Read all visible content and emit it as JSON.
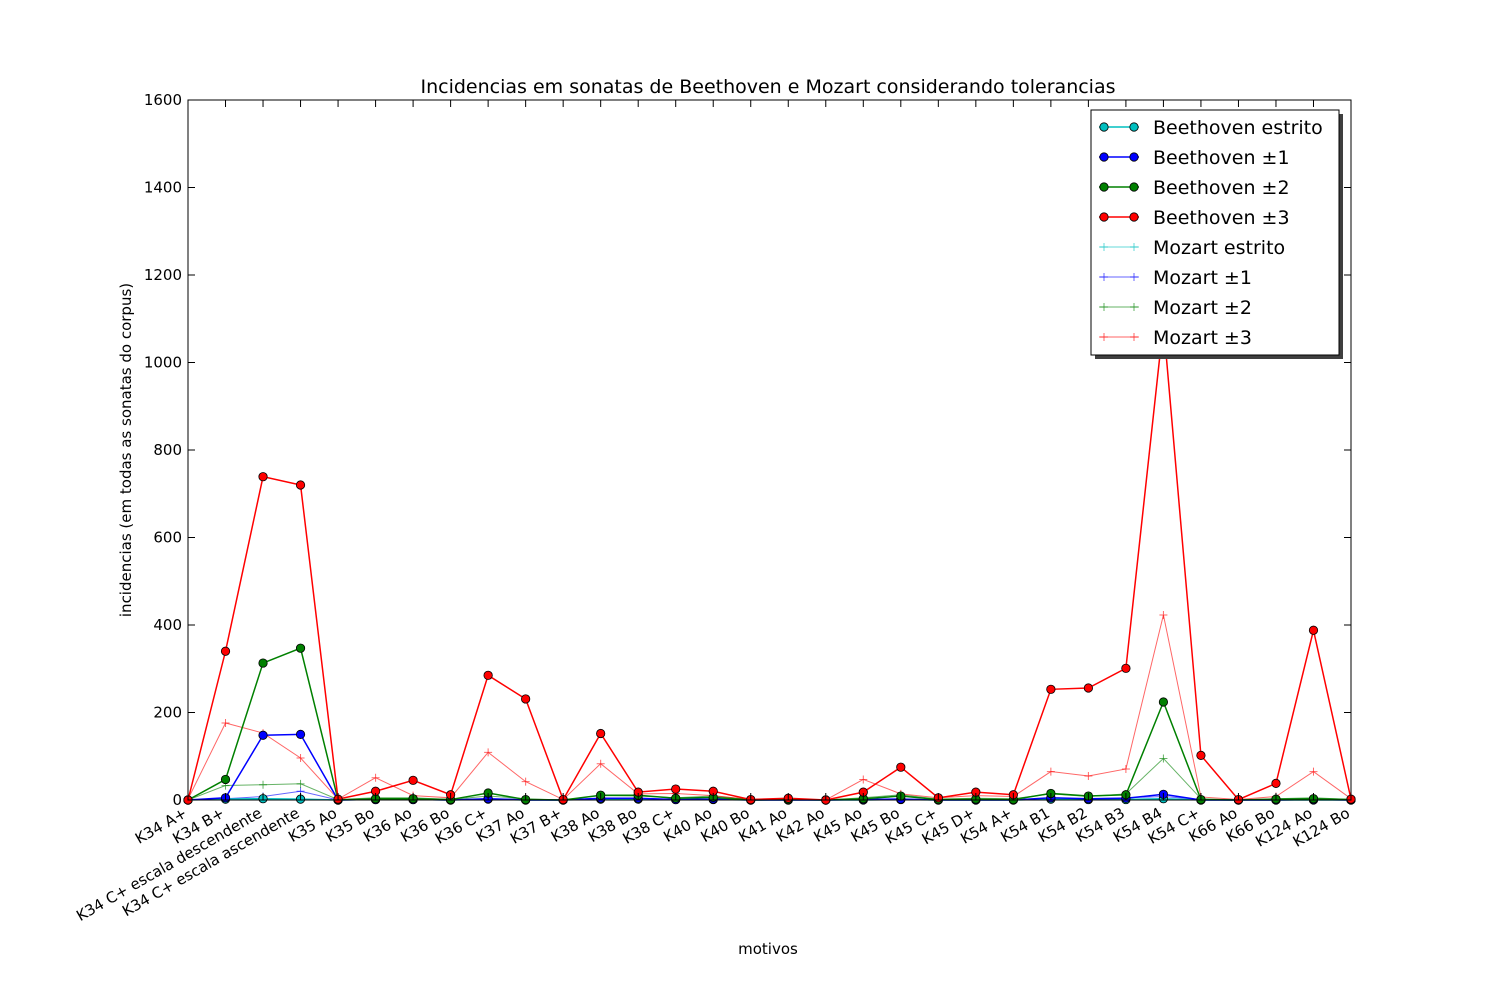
{
  "chart_data": {
    "type": "line",
    "title": "Incidencias em sonatas de Beethoven e Mozart considerando tolerancias",
    "xlabel": "motivos",
    "ylabel": "incidencias (em todas as sonatas do corpus)",
    "ylim": [
      0,
      1600
    ],
    "yticks": [
      0,
      200,
      400,
      600,
      800,
      1000,
      1200,
      1400,
      1600
    ],
    "grid": false,
    "legend_position": "top-right",
    "categories": [
      "K34 A+",
      "K34 B+",
      "K34 C+ escala descendente",
      "K34 C+ escala ascendente",
      "K35 Ao",
      "K35 Bo",
      "K36 Ao",
      "K36 Bo",
      "K36 C+",
      "K37 Ao",
      "K37 B+",
      "K38 Ao",
      "K38 Bo",
      "K38 C+",
      "K40 Ao",
      "K40 Bo",
      "K41 Ao",
      "K42 Ao",
      "K45 Ao",
      "K45 Bo",
      "K45 C+",
      "K45 D+",
      "K54 A+",
      "K54 B1",
      "K54 B2",
      "K54 B3",
      "K54 B4",
      "K54 C+",
      "K66 Ao",
      "K66 Bo",
      "K124 Ao",
      "K124 Bo"
    ],
    "series": [
      {
        "name": "Beethoven estrito",
        "label_prefix": "Beethoven",
        "label_suffix": "estrito",
        "color": "#00bfbf",
        "marker": "circle",
        "values": [
          0,
          2,
          3,
          2,
          0,
          1,
          1,
          0,
          2,
          0,
          0,
          2,
          2,
          1,
          1,
          0,
          0,
          0,
          0,
          1,
          0,
          0,
          0,
          2,
          1,
          1,
          3,
          0,
          0,
          0,
          0,
          0
        ]
      },
      {
        "name": "Beethoven ±1",
        "label_prefix": "Beethoven",
        "label_suffix": "±1",
        "color": "#0000ff",
        "marker": "circle",
        "values": [
          0,
          5,
          148,
          150,
          0,
          1,
          1,
          0,
          3,
          0,
          0,
          4,
          4,
          1,
          2,
          0,
          0,
          0,
          1,
          2,
          0,
          0,
          0,
          5,
          3,
          4,
          13,
          0,
          0,
          0,
          1,
          0
        ]
      },
      {
        "name": "Beethoven ±2",
        "label_prefix": "Beethoven",
        "label_suffix": "±2",
        "color": "#008000",
        "marker": "circle",
        "values": [
          0,
          47,
          313,
          347,
          0,
          3,
          3,
          1,
          16,
          1,
          0,
          11,
          11,
          4,
          6,
          0,
          1,
          0,
          3,
          9,
          1,
          2,
          1,
          15,
          9,
          12,
          224,
          1,
          0,
          2,
          3,
          1
        ]
      },
      {
        "name": "Beethoven ±3",
        "label_prefix": "Beethoven",
        "label_suffix": "±3",
        "color": "#ff0000",
        "marker": "circle",
        "values": [
          0,
          340,
          739,
          720,
          2,
          20,
          45,
          12,
          285,
          231,
          1,
          152,
          18,
          25,
          20,
          1,
          4,
          0,
          18,
          75,
          5,
          18,
          12,
          253,
          256,
          301,
          1090,
          102,
          1,
          38,
          388,
          2
        ]
      },
      {
        "name": "Mozart estrito",
        "label_prefix": "Mozart",
        "label_suffix": "estrito",
        "color": "#00bfbf",
        "marker": "plus",
        "values": [
          0,
          1,
          2,
          2,
          0,
          1,
          0,
          0,
          1,
          0,
          0,
          1,
          1,
          0,
          0,
          0,
          0,
          0,
          1,
          1,
          0,
          0,
          0,
          1,
          1,
          1,
          2,
          0,
          0,
          0,
          1,
          0
        ]
      },
      {
        "name": "Mozart ±1",
        "label_prefix": "Mozart",
        "label_suffix": "±1",
        "color": "#0000ff",
        "marker": "plus",
        "values": [
          0,
          3,
          8,
          20,
          0,
          2,
          1,
          0,
          3,
          1,
          0,
          3,
          2,
          1,
          2,
          0,
          0,
          0,
          2,
          3,
          0,
          1,
          1,
          4,
          3,
          5,
          8,
          1,
          0,
          1,
          2,
          0
        ]
      },
      {
        "name": "Mozart ±2",
        "label_prefix": "Mozart",
        "label_suffix": "±2",
        "color": "#008000",
        "marker": "plus",
        "values": [
          0,
          33,
          35,
          37,
          1,
          5,
          5,
          1,
          9,
          3,
          0,
          10,
          9,
          5,
          9,
          1,
          1,
          0,
          5,
          12,
          2,
          4,
          3,
          14,
          8,
          14,
          95,
          3,
          0,
          3,
          5,
          1
        ]
      },
      {
        "name": "Mozart ±3",
        "label_prefix": "Mozart",
        "label_suffix": "±3",
        "color": "#ff0000",
        "marker": "plus",
        "values": [
          2,
          176,
          153,
          96,
          2,
          51,
          10,
          5,
          109,
          42,
          1,
          83,
          14,
          15,
          10,
          1,
          3,
          0,
          47,
          14,
          5,
          10,
          8,
          65,
          55,
          71,
          423,
          7,
          1,
          8,
          65,
          3
        ]
      }
    ]
  }
}
